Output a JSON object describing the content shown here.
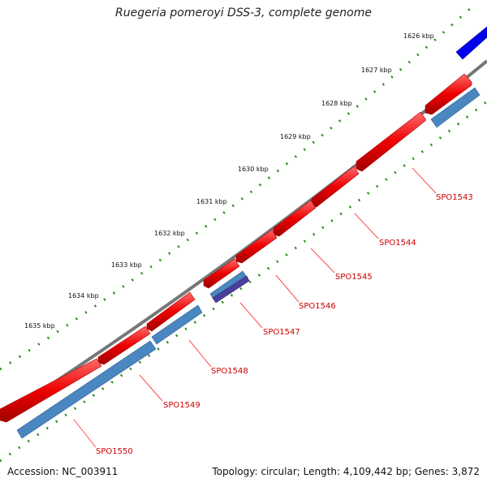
{
  "title": "Ruegeria pomeroyi DSS-3, complete genome",
  "footer": {
    "accession": "Accession: NC_003911",
    "summary": "Topology: circular; Length: 4,109,442 bp; Genes: 3,872"
  },
  "ticks": [
    "1626 kbp",
    "1627 kbp",
    "1628 kbp",
    "1629 kbp",
    "1630 kbp",
    "1631 kbp",
    "1632 kbp",
    "1633 kbp",
    "1634 kbp",
    "1635 kbp"
  ],
  "genes": [
    "SPO1543",
    "SPO1544",
    "SPO1545",
    "SPO1546",
    "SPO1547",
    "SPO1548",
    "SPO1549",
    "SPO1550"
  ],
  "colors": {
    "forward_gene": "#ee0000",
    "reverse_gene": "#4a86c0",
    "highlight_gene": "#0000ee",
    "rna_gene": "#4a3f9a",
    "backbone": "#777777",
    "tick_marks": "#2e8b1f",
    "gene_label": "#cc0000"
  }
}
